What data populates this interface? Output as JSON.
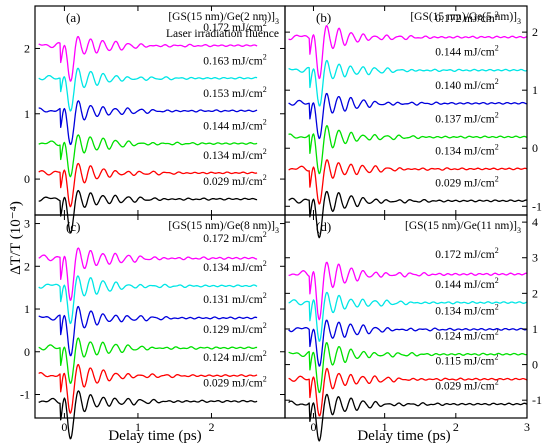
{
  "figure": {
    "ylabel": "ΔT/T (10⁻⁴)",
    "xlabel": "Delay time (ps)"
  },
  "chart_data": [
    {
      "type": "line",
      "panel": "(a)",
      "title": "[GS(15 nm)/Ge(2 nm)]3",
      "subtitle": "Laser irradiation fluence",
      "xlim": [
        -0.4,
        3.0
      ],
      "ylim": [
        -0.55,
        2.65
      ],
      "xticks": [
        0,
        1,
        2,
        3
      ],
      "yticks": [
        0,
        1,
        2
      ],
      "xlabel": "Delay time (ps)",
      "ylabel": "ΔT/T (10⁻⁴)",
      "series": [
        {
          "name": "0.029 mJ/cm2",
          "color": "#000000",
          "offset": -0.3,
          "amp": 0.42
        },
        {
          "name": "0.134 mJ/cm2",
          "color": "#ff0000",
          "offset": 0.1,
          "amp": 0.4
        },
        {
          "name": "0.144 mJ/cm2",
          "color": "#00e000",
          "offset": 0.55,
          "amp": 0.42
        },
        {
          "name": "0.153 mJ/cm2",
          "color": "#0000dd",
          "offset": 1.05,
          "amp": 0.42
        },
        {
          "name": "0.163 mJ/cm2",
          "color": "#00e6e6",
          "offset": 1.55,
          "amp": 0.4
        },
        {
          "name": "0.172 mJ/cm2",
          "color": "#ff00ff",
          "offset": 2.05,
          "amp": 0.45
        }
      ]
    },
    {
      "type": "line",
      "panel": "(b)",
      "title": "[GS(15 nm)/Ge(5 nm)]3",
      "xlim": [
        -0.4,
        3.0
      ],
      "ylim": [
        -1.15,
        2.45
      ],
      "xticks": [
        0,
        1,
        2,
        3
      ],
      "yticks": [
        -1,
        0,
        1,
        2
      ],
      "xlabel": "Delay time (ps)",
      "ylabel": "ΔT/T (10⁻⁴)",
      "series": [
        {
          "name": "0.029 mJ/cm2",
          "color": "#000000",
          "offset": -0.9,
          "amp": 0.5
        },
        {
          "name": "0.134 mJ/cm2",
          "color": "#ff0000",
          "offset": -0.35,
          "amp": 0.5
        },
        {
          "name": "0.137 mJ/cm2",
          "color": "#00e000",
          "offset": 0.2,
          "amp": 0.5
        },
        {
          "name": "0.140 mJ/cm2",
          "color": "#0000dd",
          "offset": 0.78,
          "amp": 0.5
        },
        {
          "name": "0.144 mJ/cm2",
          "color": "#00e6e6",
          "offset": 1.35,
          "amp": 0.5
        },
        {
          "name": "0.172 mJ/cm2",
          "color": "#ff00ff",
          "offset": 1.92,
          "amp": 0.55
        }
      ]
    },
    {
      "type": "line",
      "panel": "(c)",
      "title": "[GS(15 nm)/Ge(8 nm)]3",
      "xlim": [
        -0.4,
        3.0
      ],
      "ylim": [
        -1.55,
        3.2
      ],
      "xticks": [
        0,
        1,
        2,
        3
      ],
      "yticks": [
        -1,
        0,
        1,
        2,
        3
      ],
      "xlabel": "Delay time (ps)",
      "ylabel": "ΔT/T (10⁻⁴)",
      "series": [
        {
          "name": "0.029 mJ/cm2",
          "color": "#000000",
          "offset": -1.15,
          "amp": 0.7
        },
        {
          "name": "0.124 mJ/cm2",
          "color": "#ff0000",
          "offset": -0.55,
          "amp": 0.7
        },
        {
          "name": "0.129 mJ/cm2",
          "color": "#00e000",
          "offset": 0.1,
          "amp": 0.7
        },
        {
          "name": "0.131 mJ/cm2",
          "color": "#0000dd",
          "offset": 0.8,
          "amp": 0.7
        },
        {
          "name": "0.134 mJ/cm2",
          "color": "#00e6e6",
          "offset": 1.55,
          "amp": 0.7
        },
        {
          "name": "0.172 mJ/cm2",
          "color": "#ff00ff",
          "offset": 2.2,
          "amp": 0.8
        }
      ]
    },
    {
      "type": "line",
      "panel": "(d)",
      "title": "[GS(15 nm)/Ge(11 nm)]3",
      "xlim": [
        -0.4,
        3.0
      ],
      "ylim": [
        -1.5,
        4.2
      ],
      "xticks": [
        0,
        1,
        2,
        3
      ],
      "yticks": [
        -1,
        0,
        1,
        2,
        3,
        4
      ],
      "xlabel": "Delay time (ps)",
      "ylabel": "ΔT/T (10⁻⁴)",
      "series": [
        {
          "name": "0.029 mJ/cm2",
          "color": "#000000",
          "offset": -1.1,
          "amp": 0.85
        },
        {
          "name": "0.115 mJ/cm2",
          "color": "#ff0000",
          "offset": -0.4,
          "amp": 0.85
        },
        {
          "name": "0.124 mJ/cm2",
          "color": "#00e000",
          "offset": 0.3,
          "amp": 0.85
        },
        {
          "name": "0.134 mJ/cm2",
          "color": "#0000dd",
          "offset": 1.0,
          "amp": 0.85
        },
        {
          "name": "0.144 mJ/cm2",
          "color": "#00e6e6",
          "offset": 1.75,
          "amp": 0.85
        },
        {
          "name": "0.172 mJ/cm2",
          "color": "#ff00ff",
          "offset": 2.55,
          "amp": 1.0
        }
      ]
    }
  ]
}
